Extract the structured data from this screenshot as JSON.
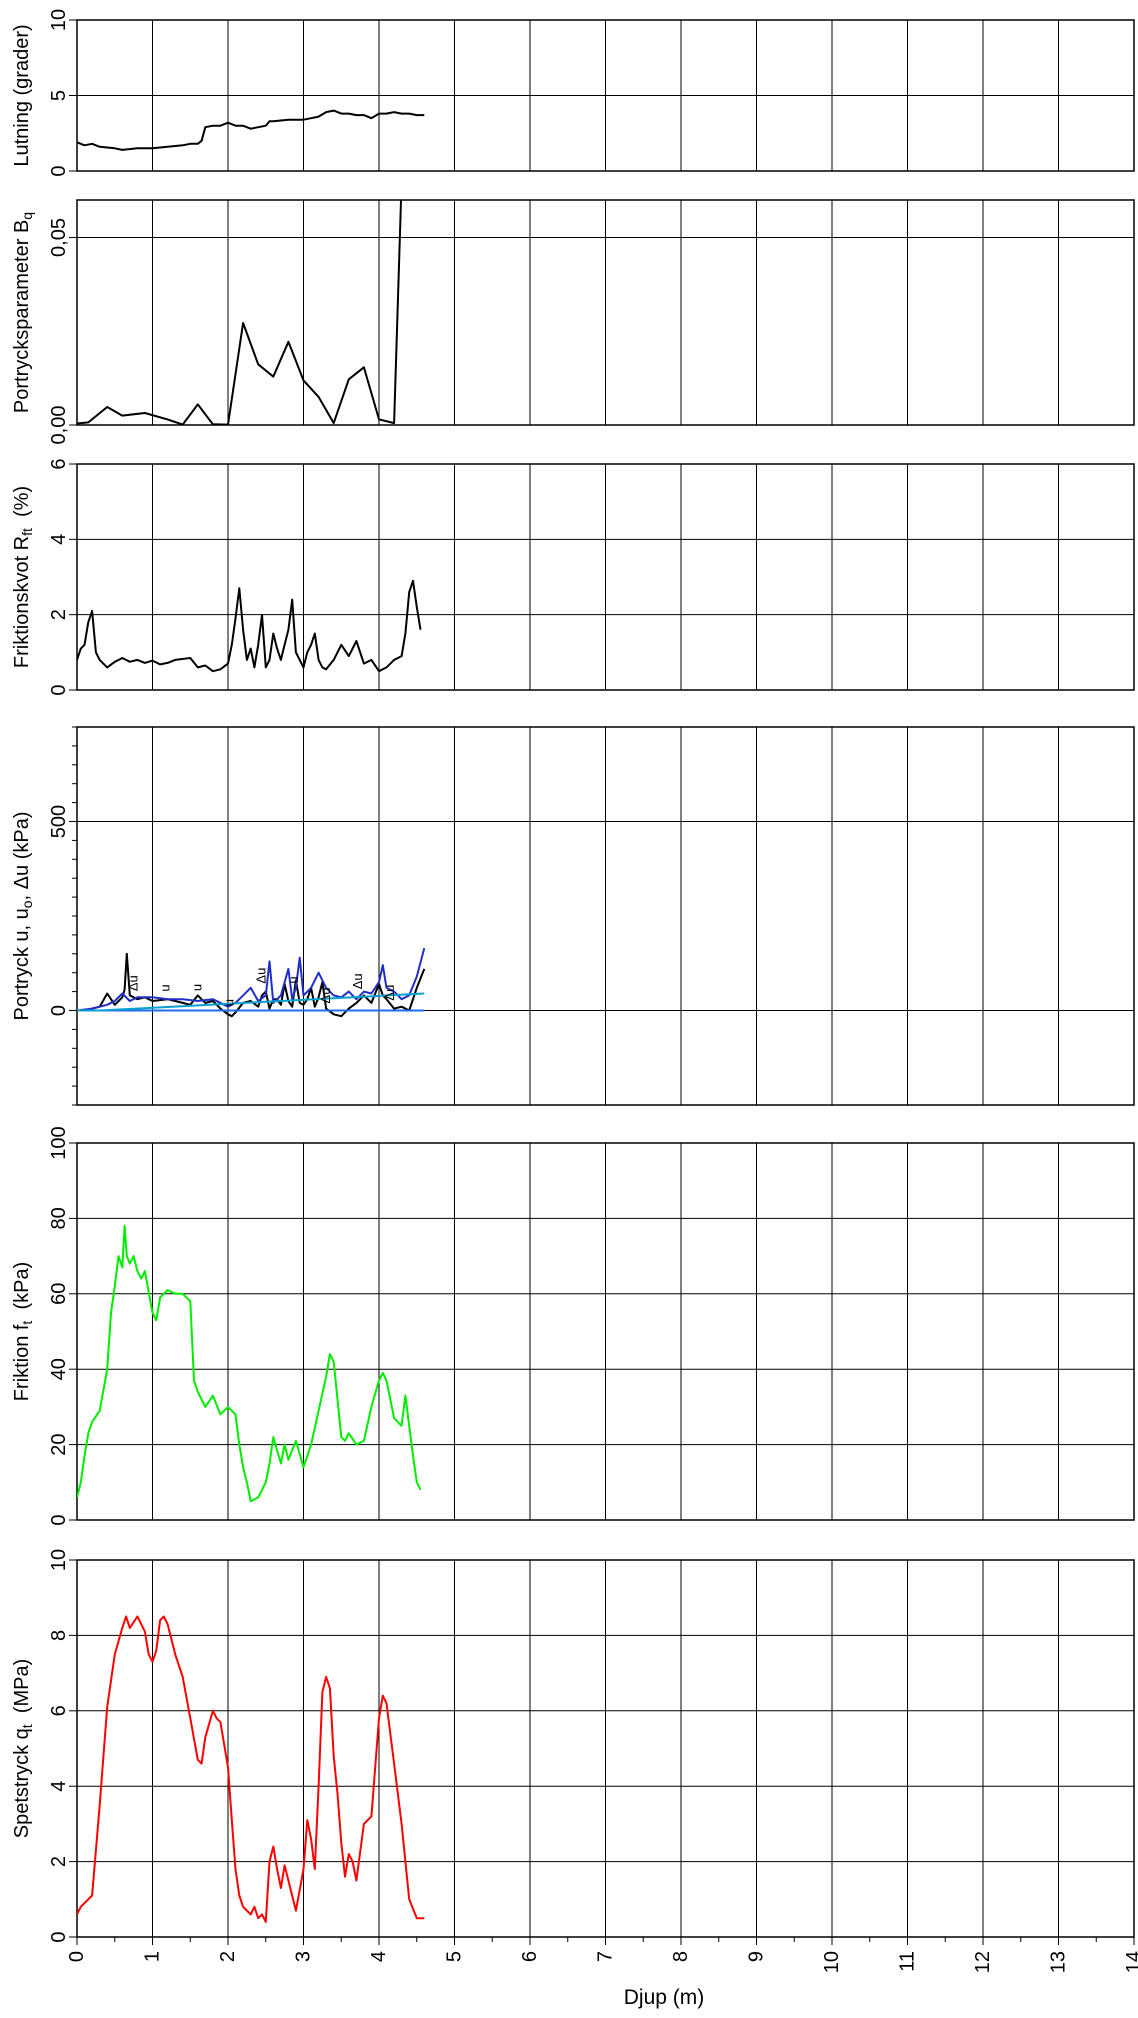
{
  "x_axis": {
    "label": "Djup  (m)",
    "min": 0,
    "max": 14,
    "ticks": [
      0,
      1,
      2,
      3,
      4,
      5,
      6,
      7,
      8,
      9,
      10,
      11,
      12,
      13,
      14
    ],
    "tick_labels": [
      "0",
      "1",
      "2",
      "3",
      "4",
      "5",
      "6",
      "7",
      "8",
      "9",
      "10",
      "11",
      "12",
      "13",
      "14"
    ]
  },
  "chart_data": [
    {
      "type": "line",
      "ylabel": "Lutning (grader)",
      "ylim": [
        0,
        10
      ],
      "yticks": [
        0,
        5,
        10
      ],
      "ytick_labels": [
        "0",
        "5",
        "10"
      ],
      "grid": true,
      "series": [
        {
          "color": "#000000",
          "x": [
            0,
            0.1,
            0.2,
            0.3,
            0.5,
            0.6,
            0.8,
            1.0,
            1.2,
            1.4,
            1.5,
            1.6,
            1.65,
            1.7,
            1.8,
            1.9,
            2.0,
            2.1,
            2.2,
            2.3,
            2.4,
            2.5,
            2.55,
            2.6,
            2.8,
            3.0,
            3.1,
            3.2,
            3.3,
            3.4,
            3.5,
            3.6,
            3.7,
            3.8,
            3.9,
            4.0,
            4.1,
            4.2,
            4.3,
            4.4,
            4.5,
            4.6
          ],
          "y": [
            1.9,
            1.7,
            1.8,
            1.6,
            1.5,
            1.4,
            1.5,
            1.5,
            1.6,
            1.7,
            1.8,
            1.8,
            2.0,
            2.9,
            3.0,
            3.0,
            3.2,
            3.0,
            3.0,
            2.8,
            2.9,
            3.0,
            3.3,
            3.3,
            3.4,
            3.4,
            3.5,
            3.6,
            3.9,
            4.0,
            3.8,
            3.8,
            3.7,
            3.7,
            3.5,
            3.8,
            3.8,
            3.9,
            3.8,
            3.8,
            3.7,
            3.7
          ]
        }
      ]
    },
    {
      "type": "line",
      "ylabel": "Portrycksparameter B",
      "ylabel_sub": "q",
      "ylim": [
        0,
        0.06
      ],
      "yticks": [
        0,
        0.05
      ],
      "ytick_labels": [
        "0,00",
        "0,05"
      ],
      "grid": true,
      "series": [
        {
          "color": "#000000",
          "x": [
            0,
            0.15,
            0.4,
            0.6,
            0.9,
            1.2,
            1.4,
            1.6,
            1.8,
            2.0,
            2.2,
            2.4,
            2.6,
            2.8,
            3.0,
            3.2,
            3.4,
            3.6,
            3.8,
            4.0,
            4.2,
            4.3
          ],
          "y": [
            0.0004,
            0.0007,
            0.0048,
            0.0025,
            0.0032,
            0.0015,
            0.0001,
            0.0055,
            0.0002,
            0.0001,
            0.0272,
            0.0162,
            0.0129,
            0.0222,
            0.0119,
            0.0075,
            0.0005,
            0.0122,
            0.0154,
            0.0015,
            0.0005,
            0.065
          ]
        }
      ]
    },
    {
      "type": "line",
      "ylabel": "Friktionskvot R",
      "ylabel_sub": "ft",
      "ylabel_unit": "(%)",
      "ylim": [
        0,
        6
      ],
      "yticks": [
        0,
        2,
        4,
        6
      ],
      "ytick_labels": [
        "0",
        "2",
        "4",
        "6"
      ],
      "grid": true,
      "series": [
        {
          "color": "#000000",
          "x": [
            0,
            0.05,
            0.1,
            0.15,
            0.2,
            0.25,
            0.3,
            0.4,
            0.5,
            0.6,
            0.7,
            0.8,
            0.9,
            1.0,
            1.1,
            1.2,
            1.3,
            1.5,
            1.6,
            1.7,
            1.8,
            1.9,
            2.0,
            2.05,
            2.1,
            2.15,
            2.2,
            2.25,
            2.3,
            2.35,
            2.4,
            2.45,
            2.5,
            2.55,
            2.6,
            2.65,
            2.7,
            2.75,
            2.8,
            2.85,
            2.9,
            2.95,
            3.0,
            3.05,
            3.1,
            3.15,
            3.2,
            3.25,
            3.3,
            3.4,
            3.5,
            3.6,
            3.7,
            3.8,
            3.9,
            4.0,
            4.1,
            4.2,
            4.3,
            4.35,
            4.4,
            4.45,
            4.5,
            4.55
          ],
          "y": [
            0.8,
            1.1,
            1.2,
            1.8,
            2.1,
            1.0,
            0.8,
            0.6,
            0.75,
            0.85,
            0.75,
            0.8,
            0.72,
            0.78,
            0.68,
            0.72,
            0.8,
            0.85,
            0.6,
            0.65,
            0.5,
            0.55,
            0.7,
            1.2,
            1.9,
            2.7,
            1.6,
            0.8,
            1.1,
            0.6,
            1.2,
            2.0,
            0.6,
            0.8,
            1.5,
            1.1,
            0.8,
            1.2,
            1.6,
            2.4,
            1.0,
            0.8,
            0.6,
            1.0,
            1.2,
            1.5,
            0.8,
            0.6,
            0.55,
            0.8,
            1.2,
            0.9,
            1.3,
            0.7,
            0.8,
            0.5,
            0.6,
            0.8,
            0.9,
            1.5,
            2.6,
            2.9,
            2.2,
            1.6
          ]
        }
      ]
    },
    {
      "type": "line",
      "ylabel": "Portryck u, u",
      "ylabel_sub": "o",
      "ylabel_rest": ", Δu  (kPa)",
      "ylim": [
        -250,
        750
      ],
      "yticks": [
        -250,
        -200,
        -150,
        -100,
        -50,
        0,
        50,
        100,
        150,
        200,
        250,
        300,
        350,
        400,
        450,
        500,
        550,
        600,
        650,
        700,
        750
      ],
      "ytick_labels": [
        "",
        "",
        "",
        "",
        "",
        "0",
        "",
        "",
        "",
        "",
        "",
        "",
        "",
        "",
        "",
        "500",
        "",
        "",
        "",
        "",
        ""
      ],
      "grid": true,
      "series": [
        {
          "name": "u",
          "color": "#000000",
          "x": [
            0,
            0.1,
            0.2,
            0.3,
            0.4,
            0.5,
            0.6,
            0.63,
            0.66,
            0.7,
            0.8,
            0.9,
            1.0,
            1.2,
            1.4,
            1.5,
            1.6,
            1.7,
            1.8,
            1.9,
            2.0,
            2.05,
            2.1,
            2.2,
            2.3,
            2.4,
            2.45,
            2.5,
            2.55,
            2.6,
            2.65,
            2.7,
            2.75,
            2.8,
            2.85,
            2.9,
            2.95,
            3.0,
            3.05,
            3.1,
            3.15,
            3.2,
            3.25,
            3.3,
            3.4,
            3.5,
            3.6,
            3.7,
            3.8,
            3.9,
            4.0,
            4.05,
            4.1,
            4.2,
            4.3,
            4.4,
            4.5,
            4.6
          ],
          "y": [
            0,
            0,
            5,
            10,
            45,
            15,
            35,
            55,
            150,
            40,
            30,
            35,
            25,
            30,
            20,
            15,
            40,
            20,
            25,
            5,
            -10,
            -15,
            -5,
            20,
            25,
            10,
            40,
            50,
            5,
            30,
            30,
            15,
            70,
            25,
            10,
            80,
            20,
            15,
            30,
            60,
            10,
            35,
            75,
            5,
            -10,
            -15,
            5,
            20,
            40,
            20,
            70,
            40,
            30,
            5,
            10,
            0,
            60,
            110
          ]
        },
        {
          "name": "u_o",
          "color": "#1e6ef0",
          "x": [
            0,
            1,
            2,
            3,
            4,
            4.6
          ],
          "y": [
            0,
            0,
            0,
            0,
            0,
            0
          ]
        },
        {
          "name": "Δu",
          "color": "#1f2fc8",
          "x": [
            0,
            0.2,
            0.4,
            0.5,
            0.6,
            0.7,
            0.8,
            1.0,
            1.2,
            1.4,
            1.6,
            1.8,
            2.0,
            2.1,
            2.2,
            2.3,
            2.4,
            2.5,
            2.55,
            2.6,
            2.7,
            2.8,
            2.85,
            2.9,
            2.95,
            3.0,
            3.1,
            3.2,
            3.3,
            3.4,
            3.5,
            3.6,
            3.7,
            3.8,
            3.9,
            4.0,
            4.05,
            4.1,
            4.2,
            4.3,
            4.4,
            4.5,
            4.6
          ],
          "y": [
            0,
            5,
            15,
            25,
            45,
            25,
            35,
            35,
            30,
            30,
            25,
            30,
            10,
            20,
            40,
            60,
            25,
            40,
            130,
            20,
            40,
            110,
            30,
            60,
            140,
            40,
            60,
            100,
            60,
            40,
            35,
            50,
            30,
            50,
            45,
            75,
            120,
            60,
            50,
            30,
            40,
            90,
            165
          ]
        },
        {
          "name": "hydrostatic",
          "color": "#0aa0d0",
          "x": [
            0,
            0.3,
            4.6
          ],
          "y": [
            0,
            0,
            45
          ]
        }
      ],
      "curve_labels": [
        "Δu",
        "u",
        "u",
        "u",
        "Δu",
        "u",
        "Δu",
        "Δu",
        "Δu"
      ]
    },
    {
      "type": "line",
      "ylabel": "Friktion f",
      "ylabel_sub": "t",
      "ylabel_unit": "(kPa)",
      "ylim": [
        0,
        100
      ],
      "yticks": [
        0,
        20,
        40,
        60,
        80,
        100
      ],
      "ytick_labels": [
        "0",
        "20",
        "40",
        "60",
        "80",
        "100"
      ],
      "grid": true,
      "series": [
        {
          "color": "#00ee00",
          "x": [
            0,
            0.05,
            0.1,
            0.15,
            0.2,
            0.3,
            0.4,
            0.45,
            0.5,
            0.55,
            0.6,
            0.63,
            0.66,
            0.7,
            0.75,
            0.8,
            0.85,
            0.9,
            1.0,
            1.05,
            1.1,
            1.2,
            1.3,
            1.4,
            1.5,
            1.55,
            1.6,
            1.7,
            1.8,
            1.9,
            2.0,
            2.1,
            2.15,
            2.2,
            2.25,
            2.3,
            2.4,
            2.5,
            2.55,
            2.6,
            2.7,
            2.75,
            2.8,
            2.9,
            3.0,
            3.1,
            3.2,
            3.3,
            3.35,
            3.4,
            3.5,
            3.55,
            3.6,
            3.7,
            3.8,
            3.9,
            4.0,
            4.05,
            4.1,
            4.2,
            4.3,
            4.35,
            4.4,
            4.45,
            4.5,
            4.55
          ],
          "y": [
            6,
            10,
            17,
            23,
            26,
            29,
            40,
            55,
            62,
            70,
            67,
            78,
            70,
            68,
            70,
            66,
            64,
            66,
            55,
            53,
            59,
            61,
            60,
            60,
            58,
            37,
            34,
            30,
            33,
            28,
            30,
            28,
            20,
            14,
            10,
            5,
            6,
            10,
            15,
            22,
            15,
            20,
            16,
            21,
            14,
            20,
            29,
            38,
            44,
            42,
            22,
            21,
            23,
            20,
            21,
            30,
            37,
            39,
            37,
            27,
            25,
            33,
            25,
            17,
            10,
            8
          ]
        }
      ]
    },
    {
      "type": "line",
      "ylabel": "Spetstryck q",
      "ylabel_sub": "t",
      "ylabel_unit": "(MPa)",
      "ylim": [
        0,
        10
      ],
      "yticks": [
        0,
        2,
        4,
        6,
        8,
        10
      ],
      "ytick_labels": [
        "0",
        "2",
        "4",
        "6",
        "8",
        "10"
      ],
      "grid": true,
      "series": [
        {
          "color": "#ff0000",
          "x": [
            0,
            0.05,
            0.1,
            0.15,
            0.2,
            0.3,
            0.4,
            0.5,
            0.6,
            0.65,
            0.7,
            0.8,
            0.9,
            0.95,
            1.0,
            1.05,
            1.1,
            1.15,
            1.2,
            1.3,
            1.4,
            1.5,
            1.6,
            1.65,
            1.7,
            1.8,
            1.85,
            1.9,
            2.0,
            2.05,
            2.1,
            2.15,
            2.2,
            2.3,
            2.35,
            2.4,
            2.45,
            2.5,
            2.55,
            2.6,
            2.65,
            2.7,
            2.75,
            2.8,
            2.9,
            3.0,
            3.05,
            3.1,
            3.15,
            3.2,
            3.25,
            3.3,
            3.35,
            3.4,
            3.45,
            3.5,
            3.55,
            3.6,
            3.65,
            3.7,
            3.8,
            3.9,
            4.0,
            4.05,
            4.1,
            4.2,
            4.3,
            4.35,
            4.4,
            4.5,
            4.6
          ],
          "y": [
            0.6,
            0.8,
            0.9,
            1.0,
            1.1,
            3.5,
            6.1,
            7.5,
            8.2,
            8.5,
            8.2,
            8.5,
            8.1,
            7.5,
            7.3,
            7.6,
            8.4,
            8.5,
            8.3,
            7.5,
            6.9,
            5.8,
            4.7,
            4.6,
            5.3,
            6.0,
            5.8,
            5.7,
            4.5,
            3.1,
            1.8,
            1.1,
            0.8,
            0.6,
            0.8,
            0.5,
            0.6,
            0.4,
            2.0,
            2.4,
            1.8,
            1.3,
            1.9,
            1.5,
            0.7,
            1.8,
            3.1,
            2.6,
            1.8,
            4.0,
            6.5,
            6.9,
            6.6,
            4.8,
            3.8,
            2.5,
            1.6,
            2.2,
            2.0,
            1.5,
            3.0,
            3.2,
            5.8,
            6.4,
            6.2,
            4.6,
            3.0,
            2.0,
            1.0,
            0.5,
            0.5
          ]
        }
      ]
    }
  ]
}
